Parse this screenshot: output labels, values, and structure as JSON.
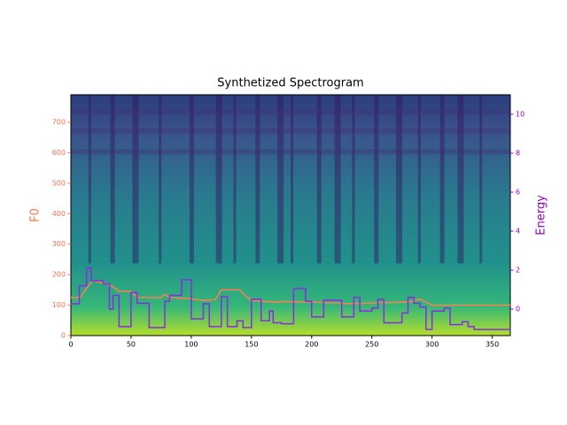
{
  "chart_data": {
    "type": "line",
    "title": "Synthetized Spectrogram",
    "ylabel": "F0",
    "y2label": "Energy",
    "xlim": [
      0,
      365
    ],
    "xticks": [
      0,
      50,
      100,
      150,
      200,
      250,
      300,
      350
    ],
    "ylim": [
      0,
      790
    ],
    "yticks": [
      0,
      100,
      200,
      300,
      400,
      500,
      600,
      700
    ],
    "y2lim": [
      -1.36,
      11
    ],
    "y2ticks": [
      0,
      2,
      4,
      6,
      8,
      10
    ],
    "ycolor": "#ff6e4a",
    "y2color": "#9400d3",
    "series": [
      {
        "name": "F0",
        "color": "#ff7f50",
        "step": false,
        "x": [
          0,
          8,
          12,
          18,
          30,
          35,
          40,
          50,
          55,
          75,
          78,
          82,
          100,
          110,
          120,
          125,
          140,
          145,
          150,
          170,
          175,
          200,
          230,
          280,
          290,
          300,
          365
        ],
        "values": [
          125,
          125,
          150,
          180,
          170,
          160,
          145,
          145,
          125,
          125,
          135,
          125,
          120,
          115,
          118,
          150,
          150,
          130,
          115,
          110,
          112,
          110,
          105,
          110,
          120,
          100,
          100
        ]
      },
      {
        "name": "Energy",
        "color": "#8a2be2",
        "axis": "y2",
        "step": true,
        "x": [
          0,
          7,
          13,
          17,
          27,
          32,
          35,
          40,
          50,
          55,
          65,
          78,
          82,
          92,
          100,
          110,
          115,
          125,
          130,
          138,
          143,
          150,
          158,
          165,
          168,
          175,
          185,
          195,
          200,
          210,
          225,
          235,
          240,
          250,
          255,
          260,
          275,
          280,
          285,
          290,
          295,
          300,
          310,
          315,
          325,
          330,
          335,
          365
        ],
        "values": [
          0.27,
          1.2,
          2.1,
          1.45,
          1.3,
          0,
          0.7,
          -0.9,
          0.85,
          0.3,
          -0.95,
          0.4,
          0.7,
          1.5,
          -0.5,
          0.27,
          -0.9,
          0.64,
          -0.9,
          -0.6,
          -0.95,
          0.5,
          -0.6,
          -0.1,
          -0.7,
          -0.75,
          1.05,
          0.4,
          -0.4,
          0.45,
          -0.4,
          0.6,
          -0.1,
          0.05,
          0.5,
          -0.7,
          -0.2,
          0.6,
          0.3,
          0.1,
          -1.05,
          -0.1,
          0.05,
          -0.8,
          -0.65,
          -0.9,
          -1.05,
          -1.05
        ]
      }
    ]
  }
}
